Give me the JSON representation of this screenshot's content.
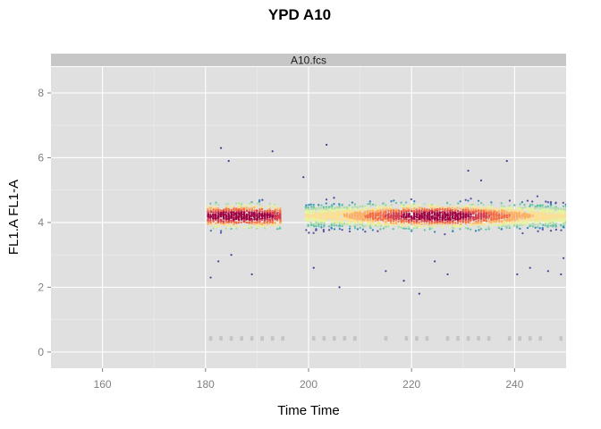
{
  "chart_data": {
    "type": "scatter",
    "title": "YPD A10",
    "panel_label": "A10.fcs",
    "xlabel": "Time Time",
    "ylabel": "FL1.A FL1-A",
    "xlim": [
      150,
      250
    ],
    "ylim": [
      -0.5,
      8.8
    ],
    "x_ticks": [
      160,
      180,
      200,
      220,
      240
    ],
    "y_ticks": [
      0,
      2,
      4,
      6,
      8
    ],
    "x_tick_labels": [
      "160",
      "180",
      "200",
      "220",
      "240"
    ],
    "y_tick_labels": [
      "0",
      "2",
      "4",
      "6",
      "8"
    ],
    "grid": true,
    "legend": "none",
    "density_coloring": "spectral (blue = low, red = high)",
    "segments": [
      {
        "x_range": [
          180.5,
          194.5
        ],
        "y_center": 4.2,
        "density_peak_x": 186.5
      },
      {
        "x_range": [
          199.5,
          250
        ],
        "y_center": 4.2,
        "density_peak_x": 225
      }
    ],
    "baseline_events": {
      "y": 0.42,
      "x": [
        181,
        183,
        185,
        187,
        189,
        191,
        193,
        195,
        201,
        203,
        205,
        207,
        209,
        215,
        219,
        221,
        223,
        227,
        229,
        231,
        233,
        235,
        239,
        241,
        243,
        245,
        249
      ]
    },
    "outliers": [
      {
        "x": 181,
        "y": 2.3
      },
      {
        "x": 182.5,
        "y": 2.8
      },
      {
        "x": 183,
        "y": 6.3
      },
      {
        "x": 184.5,
        "y": 5.9
      },
      {
        "x": 185,
        "y": 3.0
      },
      {
        "x": 189,
        "y": 2.4
      },
      {
        "x": 193,
        "y": 6.2
      },
      {
        "x": 199,
        "y": 5.4
      },
      {
        "x": 201,
        "y": 2.6
      },
      {
        "x": 203.5,
        "y": 6.4
      },
      {
        "x": 206,
        "y": 2.0
      },
      {
        "x": 215,
        "y": 2.5
      },
      {
        "x": 218.5,
        "y": 2.2
      },
      {
        "x": 221.5,
        "y": 1.8
      },
      {
        "x": 224.5,
        "y": 2.8
      },
      {
        "x": 227,
        "y": 2.4
      },
      {
        "x": 231,
        "y": 5.6
      },
      {
        "x": 233.5,
        "y": 5.3
      },
      {
        "x": 238.5,
        "y": 5.9
      },
      {
        "x": 240.5,
        "y": 2.4
      },
      {
        "x": 243,
        "y": 2.6
      },
      {
        "x": 246.5,
        "y": 2.5
      },
      {
        "x": 249,
        "y": 2.4
      },
      {
        "x": 249.5,
        "y": 2.9
      }
    ]
  }
}
